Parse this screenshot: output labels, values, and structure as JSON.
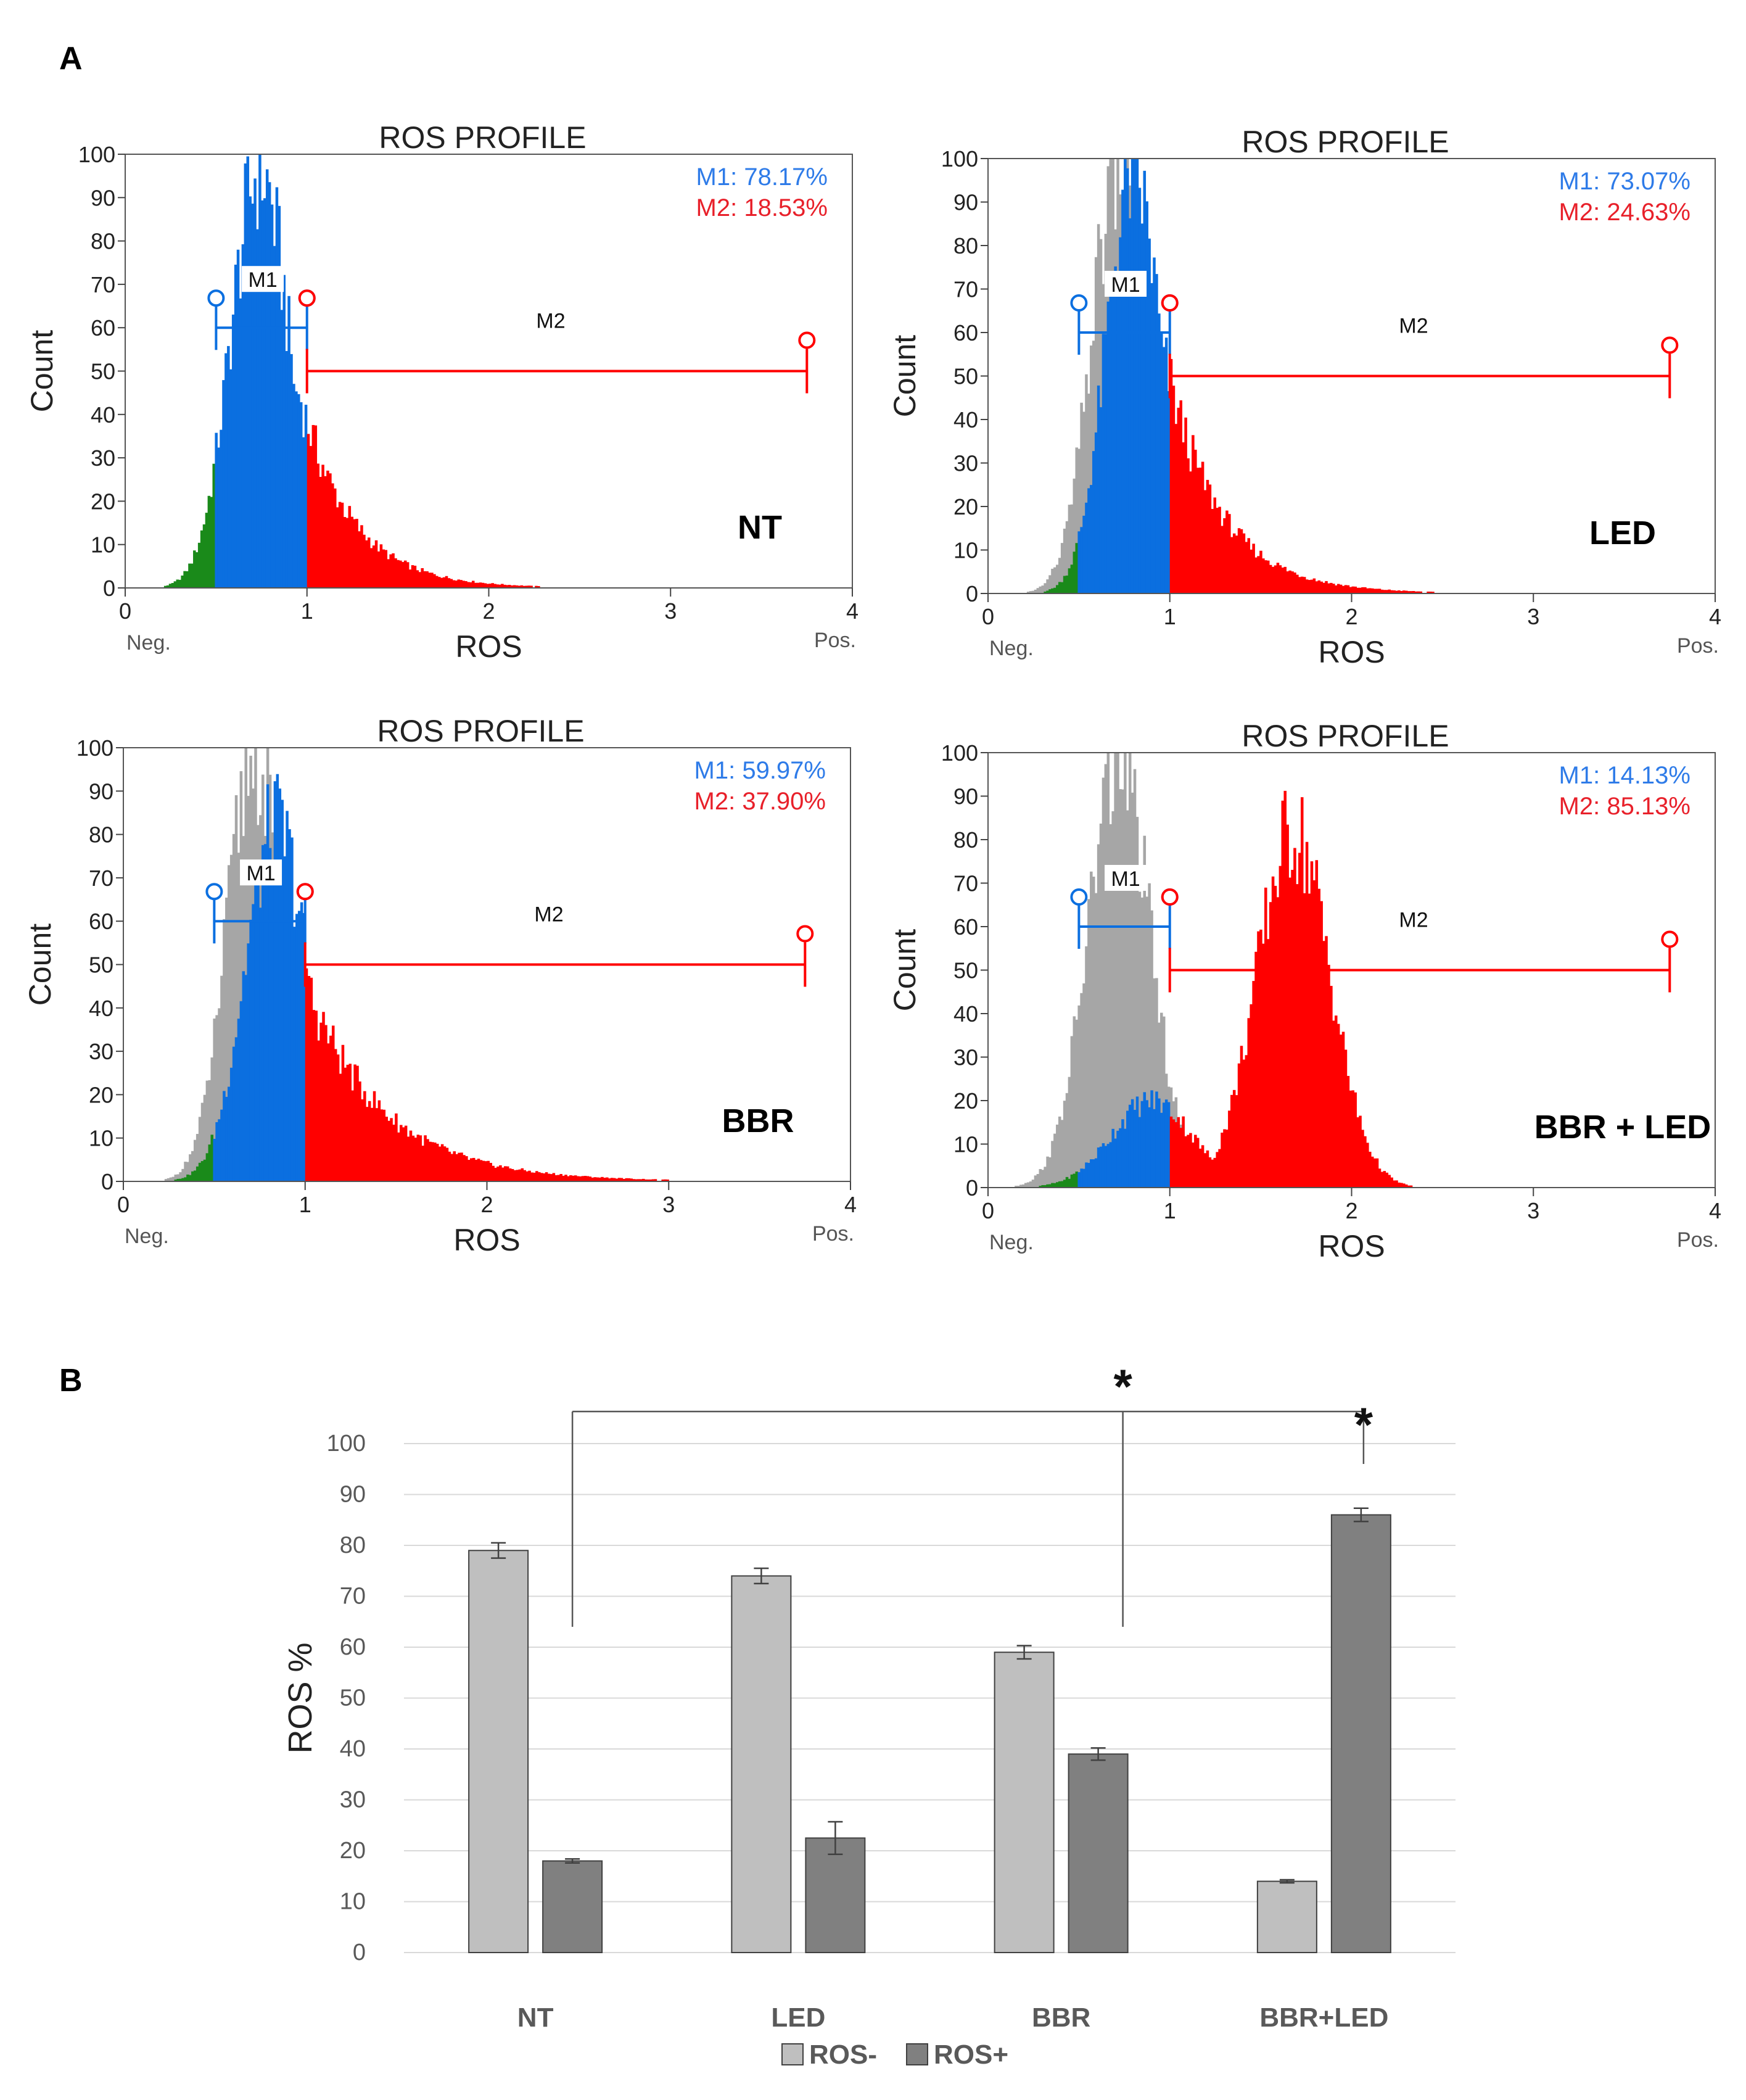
{
  "panel_a": {
    "label": "A",
    "plots": [
      {
        "title": "ROS PROFILE",
        "condition": "NT",
        "m1_text": "M1: 78.17%",
        "m2_text": "M2: 18.53%",
        "m1_label": "M1",
        "m2_label": "M2",
        "xlabel": "ROS",
        "ylabel": "Count",
        "neg_label": "Neg.",
        "pos_label": "Pos.",
        "xticks": [
          "0",
          "1",
          "2",
          "3",
          "4"
        ],
        "yticks": [
          "0",
          "10",
          "20",
          "30",
          "40",
          "50",
          "60",
          "70",
          "80",
          "90",
          "100"
        ],
        "xlim": [
          0,
          4
        ],
        "ylim": [
          0,
          100
        ],
        "m1_range": [
          0.5,
          1.0
        ],
        "m2_range": [
          1.0,
          3.75
        ],
        "m1_marker_y": 60,
        "m2_marker_y": 50,
        "control_peak": null,
        "sample_peaks": [
          {
            "center": 0.74,
            "sd": 0.16,
            "amp": 96
          }
        ],
        "sample_tail": {
          "from": 0.95,
          "amp": 46,
          "decay": 3.6
        }
      },
      {
        "title": "ROS PROFILE",
        "condition": "LED",
        "m1_text": "M1: 73.07%",
        "m2_text": "M2: 24.63%",
        "m1_label": "M1",
        "m2_label": "M2",
        "xlabel": "ROS",
        "ylabel": "Count",
        "neg_label": "Neg.",
        "pos_label": "Pos.",
        "xticks": [
          "0",
          "1",
          "2",
          "3",
          "4"
        ],
        "yticks": [
          "0",
          "10",
          "20",
          "30",
          "40",
          "50",
          "60",
          "70",
          "80",
          "90",
          "100"
        ],
        "xlim": [
          0,
          4
        ],
        "ylim": [
          0,
          100
        ],
        "m1_range": [
          0.5,
          1.0
        ],
        "m2_range": [
          1.0,
          3.75
        ],
        "m1_marker_y": 60,
        "m2_marker_y": 50,
        "control_peak": {
          "center": 0.72,
          "sd": 0.15,
          "amp": 98
        },
        "sample_peaks": [
          {
            "center": 0.8,
            "sd": 0.15,
            "amp": 96
          }
        ],
        "sample_tail": {
          "from": 0.98,
          "amp": 52,
          "decay": 3.4
        }
      },
      {
        "title": "ROS PROFILE",
        "condition": "BBR",
        "m1_text": "M1: 59.97%",
        "m2_text": "M2: 37.90%",
        "m1_label": "M1",
        "m2_label": "M2",
        "xlabel": "ROS",
        "ylabel": "Count",
        "neg_label": "Neg.",
        "pos_label": "Pos.",
        "xticks": [
          "0",
          "1",
          "2",
          "3",
          "4"
        ],
        "yticks": [
          "0",
          "10",
          "20",
          "30",
          "40",
          "50",
          "60",
          "70",
          "80",
          "90",
          "100"
        ],
        "xlim": [
          0,
          4
        ],
        "ylim": [
          0,
          100
        ],
        "m1_range": [
          0.5,
          1.0
        ],
        "m2_range": [
          1.0,
          3.75
        ],
        "m1_marker_y": 60,
        "m2_marker_y": 50,
        "control_peak": {
          "center": 0.72,
          "sd": 0.15,
          "amp": 98
        },
        "sample_peaks": [
          {
            "center": 0.84,
            "sd": 0.17,
            "amp": 82
          }
        ],
        "sample_tail": {
          "from": 0.98,
          "amp": 48,
          "decay": 2.4
        }
      },
      {
        "title": "ROS PROFILE",
        "condition": "BBR + LED",
        "m1_text": "M1: 14.13%",
        "m2_text": "M2: 85.13%",
        "m1_label": "M1",
        "m2_label": "M2",
        "xlabel": "ROS",
        "ylabel": "Count",
        "neg_label": "Neg.",
        "pos_label": "Pos.",
        "xticks": [
          "0",
          "1",
          "2",
          "3",
          "4"
        ],
        "yticks": [
          "0",
          "10",
          "20",
          "30",
          "40",
          "50",
          "60",
          "70",
          "80",
          "90",
          "100"
        ],
        "xlim": [
          0,
          4
        ],
        "ylim": [
          0,
          100
        ],
        "m1_range": [
          0.5,
          1.0
        ],
        "m2_range": [
          1.0,
          3.75
        ],
        "m1_marker_y": 60,
        "m2_marker_y": 50,
        "control_peak": {
          "center": 0.72,
          "sd": 0.17,
          "amp": 98
        },
        "sample_peaks": [
          {
            "center": 0.9,
            "sd": 0.22,
            "amp": 20
          },
          {
            "center": 1.68,
            "sd": 0.2,
            "amp": 82
          }
        ],
        "sample_tail": null
      }
    ]
  },
  "panel_b": {
    "label": "B",
    "ylabel": "ROS %",
    "yticks": [
      "0",
      "10",
      "20",
      "30",
      "40",
      "50",
      "60",
      "70",
      "80",
      "90",
      "100"
    ],
    "significance_marker": "*",
    "legend": [
      "ROS-",
      "ROS+"
    ]
  },
  "colors": {
    "m1": "#0b6fe0",
    "m2": "#ff0000",
    "green": "#1a8a1a",
    "control": "#a6a6a6",
    "m1_text": "#2e7be8",
    "m2_text": "#e8202a",
    "ros_neg": "#bfbfbf",
    "ros_pos": "#808080"
  },
  "chart_data": [
    {
      "type": "histogram",
      "title": "ROS PROFILE",
      "condition": "NT",
      "xlabel": "ROS",
      "ylabel": "Count",
      "xlim": [
        0,
        4
      ],
      "ylim": [
        0,
        100
      ],
      "markers": [
        {
          "name": "M1",
          "value_pct": 78.17,
          "range": [
            0.5,
            1.0
          ]
        },
        {
          "name": "M2",
          "value_pct": 18.53,
          "range": [
            1.0,
            3.75
          ]
        }
      ]
    },
    {
      "type": "histogram",
      "title": "ROS PROFILE",
      "condition": "LED",
      "xlabel": "ROS",
      "ylabel": "Count",
      "xlim": [
        0,
        4
      ],
      "ylim": [
        0,
        100
      ],
      "markers": [
        {
          "name": "M1",
          "value_pct": 73.07,
          "range": [
            0.5,
            1.0
          ]
        },
        {
          "name": "M2",
          "value_pct": 24.63,
          "range": [
            1.0,
            3.75
          ]
        }
      ]
    },
    {
      "type": "histogram",
      "title": "ROS PROFILE",
      "condition": "BBR",
      "xlabel": "ROS",
      "ylabel": "Count",
      "xlim": [
        0,
        4
      ],
      "ylim": [
        0,
        100
      ],
      "markers": [
        {
          "name": "M1",
          "value_pct": 59.97,
          "range": [
            0.5,
            1.0
          ]
        },
        {
          "name": "M2",
          "value_pct": 37.9,
          "range": [
            1.0,
            3.75
          ]
        }
      ]
    },
    {
      "type": "histogram",
      "title": "ROS PROFILE",
      "condition": "BBR + LED",
      "xlabel": "ROS",
      "ylabel": "Count",
      "xlim": [
        0,
        4
      ],
      "ylim": [
        0,
        100
      ],
      "markers": [
        {
          "name": "M1",
          "value_pct": 14.13,
          "range": [
            0.5,
            1.0
          ]
        },
        {
          "name": "M2",
          "value_pct": 85.13,
          "range": [
            1.0,
            3.75
          ]
        }
      ]
    },
    {
      "type": "bar",
      "title": "",
      "xlabel": "",
      "ylabel": "ROS %",
      "ylim": [
        0,
        100
      ],
      "categories": [
        "NT",
        "LED",
        "BBR",
        "BBR+LED"
      ],
      "series": [
        {
          "name": "ROS-",
          "values": [
            79,
            74,
            59,
            14
          ],
          "errors": [
            1.5,
            1.5,
            1.3,
            0.3
          ]
        },
        {
          "name": "ROS+",
          "values": [
            18,
            22.5,
            39,
            86
          ],
          "errors": [
            0.4,
            3.2,
            1.2,
            1.3
          ]
        }
      ],
      "significance": [
        {
          "from": "NT",
          "to": "BBR",
          "marker": "*"
        },
        {
          "from": "NT",
          "to": "BBR+LED",
          "marker": "*"
        }
      ],
      "legend_position": "bottom-center",
      "grid": true
    }
  ]
}
